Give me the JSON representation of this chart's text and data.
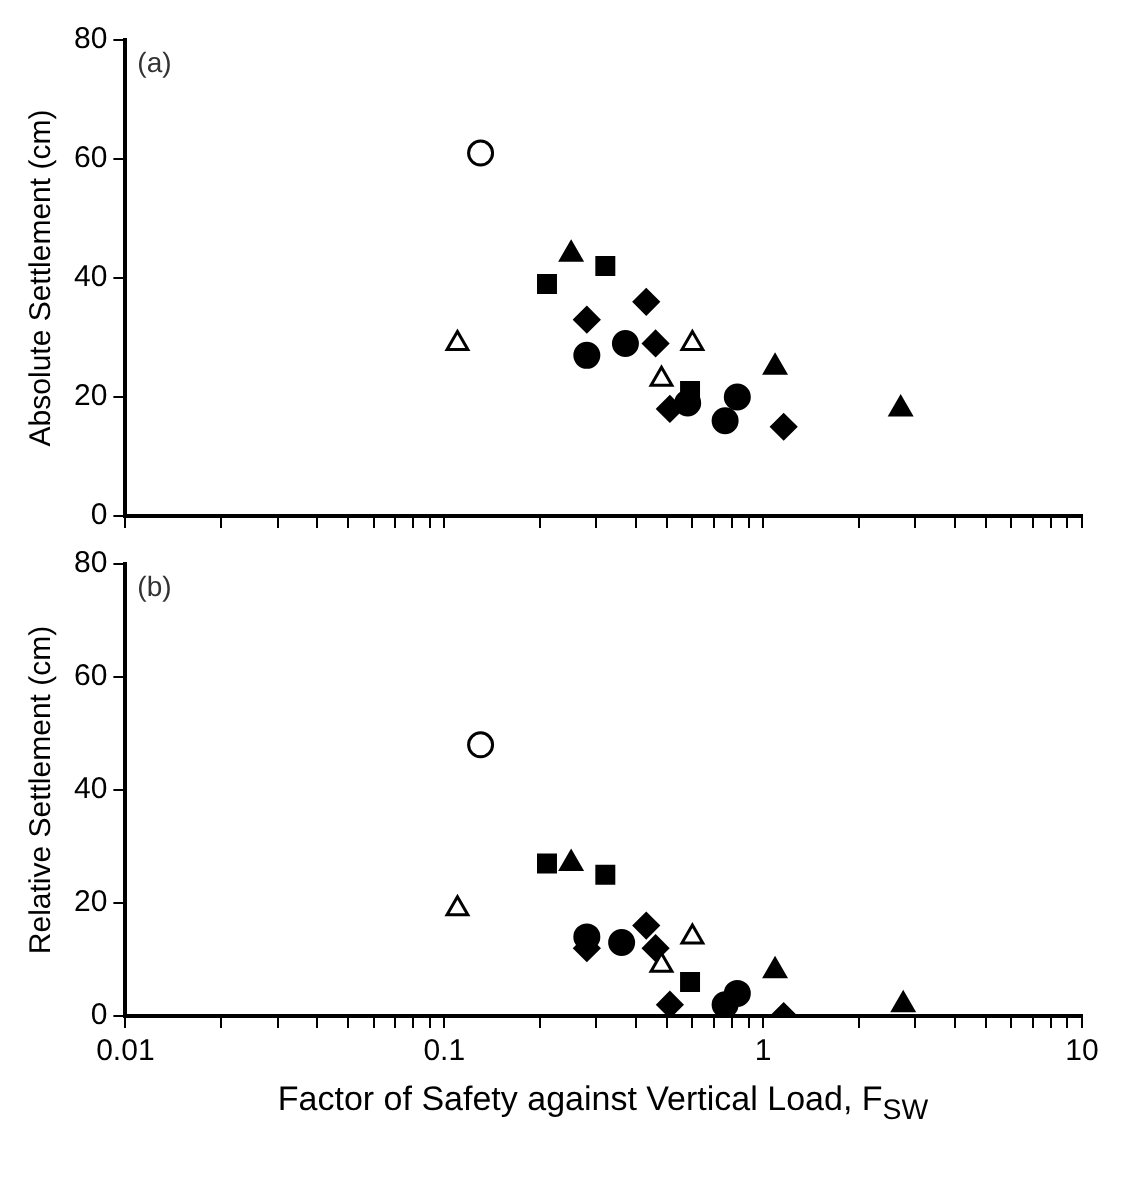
{
  "chart_data": [
    {
      "type": "scatter",
      "ylabel": "Absolute Settlement (cm)",
      "annotations": [
        "(a)"
      ],
      "log": "x",
      "grid": false,
      "legend": false,
      "tick_labels": "y",
      "xlim": [
        0.01,
        10
      ],
      "xticks": [
        0.01,
        {
          "value": 0.02,
          "label": null
        },
        {
          "value": 0.03,
          "label": null
        },
        {
          "value": 0.04,
          "label": null
        },
        {
          "value": 0.05,
          "label": null
        },
        {
          "value": 0.06,
          "label": null
        },
        {
          "value": 0.07,
          "label": null
        },
        {
          "value": 0.08,
          "label": null
        },
        {
          "value": 0.09,
          "label": null
        },
        0.1,
        {
          "value": 0.2,
          "label": null
        },
        {
          "value": 0.3,
          "label": null
        },
        {
          "value": 0.4,
          "label": null
        },
        {
          "value": 0.5,
          "label": null
        },
        {
          "value": 0.6,
          "label": null
        },
        {
          "value": 0.7,
          "label": null
        },
        {
          "value": 0.8,
          "label": null
        },
        {
          "value": 0.9,
          "label": null
        },
        1,
        {
          "value": 2,
          "label": null
        },
        {
          "value": 3,
          "label": null
        },
        {
          "value": 4,
          "label": null
        },
        {
          "value": 5,
          "label": null
        },
        {
          "value": 6,
          "label": null
        },
        {
          "value": 7,
          "label": null
        },
        {
          "value": 8,
          "label": null
        },
        {
          "value": 9,
          "label": null
        },
        10
      ],
      "ylim": [
        0,
        80
      ],
      "yticks": [
        0,
        20,
        40,
        60,
        80
      ],
      "series": [
        {
          "color": "#ffffff",
          "marker": "circle",
          "x": [
            0.13
          ],
          "values": [
            61
          ]
        },
        {
          "color": "#ffffff",
          "marker": "triangle",
          "x": [
            0.11,
            0.6,
            0.48
          ],
          "values": [
            29,
            29,
            23
          ]
        },
        {
          "color": "#000000",
          "marker": "triangle",
          "x": [
            0.25,
            1.09,
            2.7
          ],
          "values": [
            44,
            25,
            18
          ]
        },
        {
          "color": "#000000",
          "marker": "square",
          "x": [
            0.21,
            0.32,
            0.59
          ],
          "values": [
            39,
            42,
            21
          ]
        },
        {
          "color": "#000000",
          "marker": "diamond",
          "x": [
            0.28,
            0.43,
            0.46,
            1.16,
            0.51
          ],
          "values": [
            33,
            36,
            29,
            15,
            18
          ]
        },
        {
          "color": "#000000",
          "marker": "circle",
          "x": [
            0.28,
            0.37,
            0.76,
            0.83,
            0.58
          ],
          "values": [
            27,
            29,
            16,
            20,
            19
          ]
        }
      ]
    },
    {
      "type": "scatter",
      "xlabel": "Factor of Safety against Vertical Load, F$_{SW}$",
      "ylabel": "Relative Settlement (cm)",
      "annotations": [
        "(b)"
      ],
      "log": "x",
      "grid": false,
      "legend": false,
      "xlim": [
        0.01,
        10
      ],
      "xticks": [
        0.01,
        {
          "value": 0.02,
          "label": null
        },
        {
          "value": 0.03,
          "label": null
        },
        {
          "value": 0.04,
          "label": null
        },
        {
          "value": 0.05,
          "label": null
        },
        {
          "value": 0.06,
          "label": null
        },
        {
          "value": 0.07,
          "label": null
        },
        {
          "value": 0.08,
          "label": null
        },
        {
          "value": 0.09,
          "label": null
        },
        0.1,
        {
          "value": 0.2,
          "label": null
        },
        {
          "value": 0.3,
          "label": null
        },
        {
          "value": 0.4,
          "label": null
        },
        {
          "value": 0.5,
          "label": null
        },
        {
          "value": 0.6,
          "label": null
        },
        {
          "value": 0.7,
          "label": null
        },
        {
          "value": 0.8,
          "label": null
        },
        {
          "value": 0.9,
          "label": null
        },
        1,
        {
          "value": 2,
          "label": null
        },
        {
          "value": 3,
          "label": null
        },
        {
          "value": 4,
          "label": null
        },
        {
          "value": 5,
          "label": null
        },
        {
          "value": 6,
          "label": null
        },
        {
          "value": 7,
          "label": null
        },
        {
          "value": 8,
          "label": null
        },
        {
          "value": 9,
          "label": null
        },
        10
      ],
      "ylim": [
        0,
        80
      ],
      "yticks": [
        0,
        20,
        40,
        60,
        80
      ],
      "series": [
        {
          "color": "#ffffff",
          "marker": "circle",
          "x": [
            0.13
          ],
          "values": [
            48
          ]
        },
        {
          "color": "#ffffff",
          "marker": "triangle",
          "x": [
            0.11,
            0.6,
            0.48
          ],
          "values": [
            19,
            14,
            9
          ]
        },
        {
          "color": "#000000",
          "marker": "triangle",
          "x": [
            0.25,
            1.09,
            2.75
          ],
          "values": [
            27,
            8,
            2
          ]
        },
        {
          "color": "#000000",
          "marker": "square",
          "x": [
            0.21,
            0.32,
            0.59
          ],
          "values": [
            27,
            25,
            6
          ]
        },
        {
          "color": "#000000",
          "marker": "diamond",
          "x": [
            0.28,
            0.43,
            0.46,
            1.16,
            0.51
          ],
          "values": [
            12,
            16,
            12,
            0,
            2
          ]
        },
        {
          "color": "#000000",
          "marker": "circle",
          "x": [
            0.28,
            0.36,
            0.76,
            0.83
          ],
          "values": [
            14,
            13,
            2,
            4
          ]
        }
      ]
    }
  ]
}
